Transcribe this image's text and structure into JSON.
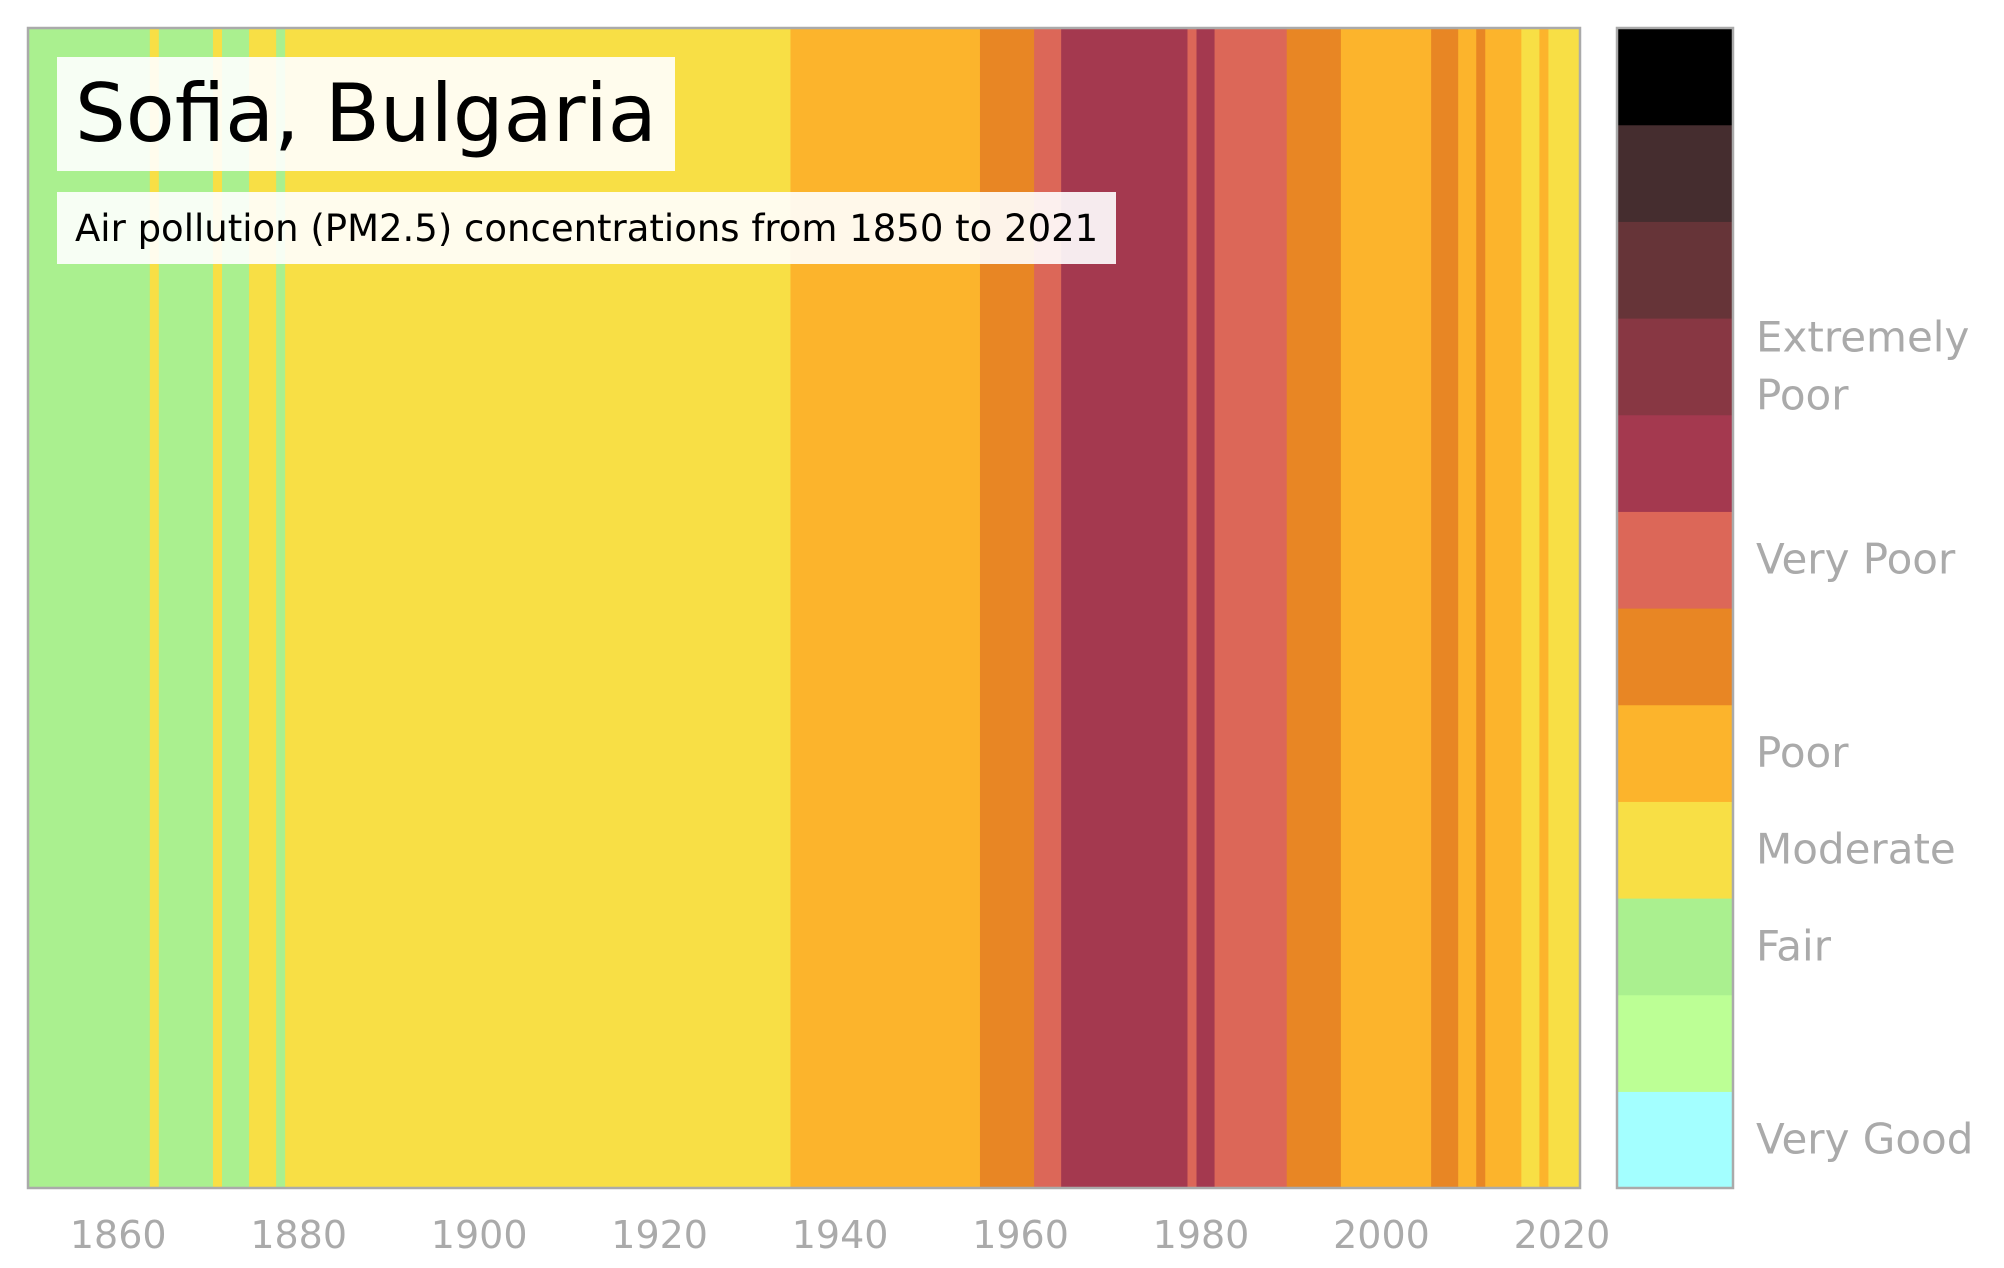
{
  "header": {
    "title": "Sofia, Bulgaria",
    "subtitle": "Air pollution (PM2.5) concentrations from 1850 to 2021"
  },
  "chart_data": {
    "type": "heatmap",
    "title": "Sofia, Bulgaria",
    "subtitle": "Air pollution (PM2.5) concentrations from 1850 to 2021",
    "xlim": [
      1850,
      2022
    ],
    "x_ticks": [
      1860,
      1880,
      1900,
      1920,
      1940,
      1960,
      1980,
      2000,
      2020
    ],
    "grid": false,
    "legend": "right",
    "colorscale": [
      "#a3ffff",
      "#bcff95",
      "#aaf08f",
      "#f8df45",
      "#fcb42c",
      "#e88624",
      "#dc6758",
      "#a4394f",
      "#883743",
      "#663438",
      "#452d2f",
      "#000000"
    ],
    "category_labels": [
      {
        "label": "Very Good",
        "level": 0
      },
      {
        "label": "Fair",
        "level": 2
      },
      {
        "label": "Moderate",
        "level": 3
      },
      {
        "label": "Poor",
        "level": 4
      },
      {
        "label": "Very Poor",
        "level": 6
      },
      {
        "label": "Extremely Poor",
        "level": 8
      }
    ],
    "segments": [
      {
        "start": 1850,
        "end": 1863.5,
        "level": 2
      },
      {
        "start": 1863.5,
        "end": 1864.5,
        "level": 3
      },
      {
        "start": 1864.5,
        "end": 1870.5,
        "level": 2
      },
      {
        "start": 1870.5,
        "end": 1871.5,
        "level": 3
      },
      {
        "start": 1871.5,
        "end": 1874.5,
        "level": 2
      },
      {
        "start": 1874.5,
        "end": 1877.5,
        "level": 3
      },
      {
        "start": 1877.5,
        "end": 1878.5,
        "level": 2
      },
      {
        "start": 1878.5,
        "end": 1934.5,
        "level": 3
      },
      {
        "start": 1934.5,
        "end": 1955.5,
        "level": 4
      },
      {
        "start": 1955.5,
        "end": 1961.5,
        "level": 5
      },
      {
        "start": 1961.5,
        "end": 1964.5,
        "level": 6
      },
      {
        "start": 1964.5,
        "end": 1978.5,
        "level": 7
      },
      {
        "start": 1978.5,
        "end": 1979.5,
        "level": 6
      },
      {
        "start": 1979.5,
        "end": 1981.5,
        "level": 7
      },
      {
        "start": 1981.5,
        "end": 1989.5,
        "level": 6
      },
      {
        "start": 1989.5,
        "end": 1995.5,
        "level": 5
      },
      {
        "start": 1995.5,
        "end": 2005.5,
        "level": 4
      },
      {
        "start": 2005.5,
        "end": 2008.5,
        "level": 5
      },
      {
        "start": 2008.5,
        "end": 2010.5,
        "level": 4
      },
      {
        "start": 2010.5,
        "end": 2011.5,
        "level": 5
      },
      {
        "start": 2011.5,
        "end": 2015.5,
        "level": 4
      },
      {
        "start": 2015.5,
        "end": 2017.5,
        "level": 3
      },
      {
        "start": 2017.5,
        "end": 2018.5,
        "level": 4
      },
      {
        "start": 2018.5,
        "end": 2022,
        "level": 3
      }
    ]
  }
}
